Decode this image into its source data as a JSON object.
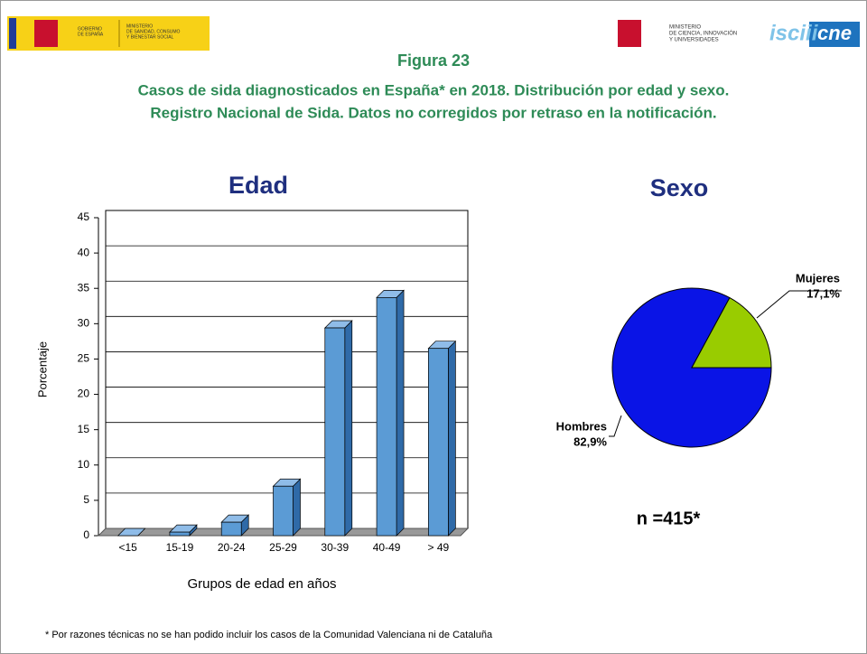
{
  "header": {
    "left_logo_1": [
      "GOBIERNO",
      "DE ESPAÑA"
    ],
    "left_logo_2": [
      "MINISTERIO",
      "DE SANIDAD, CONSUMO",
      "Y BIENESTAR SOCIAL"
    ],
    "right_logo_1": [
      "MINISTERIO",
      "DE CIENCIA, INNOVACIÓN",
      "Y UNIVERSIDADES"
    ],
    "right_logo_2": "isciii",
    "right_logo_3": "cne",
    "figure": "Figura 23",
    "title_lines": [
      "Casos de sida diagnosticados en España* en 2018. Distribución por edad y sexo.",
      "Registro Nacional de Sida. Datos no corregidos por retraso en la notificación."
    ]
  },
  "chart_data": [
    {
      "type": "bar",
      "title": "Edad",
      "x_label": "Grupos de edad en años",
      "y_label": "Porcentaje",
      "categories": [
        "<15",
        "15-19",
        "20-24",
        "25-29",
        "30-39",
        "40-49",
        "> 49"
      ],
      "values": [
        0,
        0.5,
        1.9,
        7,
        29.4,
        33.7,
        26.5
      ],
      "color": "#5b9bd5",
      "ylim": [
        0,
        45
      ],
      "yticks": [
        0,
        5,
        10,
        15,
        20,
        25,
        30,
        35,
        40,
        45
      ],
      "grid": true
    },
    {
      "type": "pie",
      "title": "Sexo",
      "categories": [
        "Hombres",
        "Mujeres"
      ],
      "values": [
        82.9,
        17.1
      ],
      "value_labels": [
        "82,9%",
        "17,1%"
      ],
      "colors": [
        "#0a14e6",
        "#99cc00"
      ],
      "annotation": "n =415*"
    }
  ],
  "footnote": "* Por razones técnicas no se han podido incluir los casos de la Comunidad Valenciana ni de Cataluña"
}
